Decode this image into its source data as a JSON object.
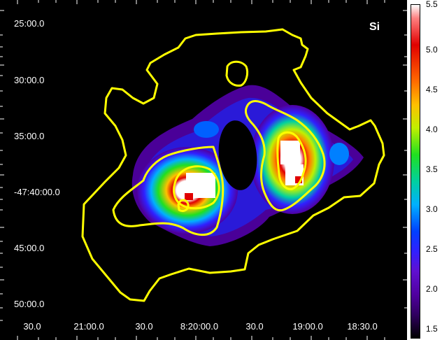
{
  "element_label": "Si",
  "dec_labels": [
    "25:00.0",
    "30:00.0",
    "35:00.0",
    "-47:40:00.0",
    "45:00.0",
    "50:00.0"
  ],
  "ra_labels": [
    "30.0",
    "21:00.0",
    "30.0",
    "8:20:00.0",
    "30.0",
    "19:00.0",
    "18:30.0"
  ],
  "colorbar_labels": [
    "5.5",
    "5.0",
    "4.5",
    "4.0",
    "3.5",
    "3.0",
    "2.5",
    "2.0",
    "1.5"
  ],
  "contour_color": "#ffff00",
  "colormap": [
    "#000000",
    "#5000a0",
    "#3020ff",
    "#00b0ff",
    "#20e020",
    "#ffc000",
    "#e00000",
    "#ffffff"
  ]
}
